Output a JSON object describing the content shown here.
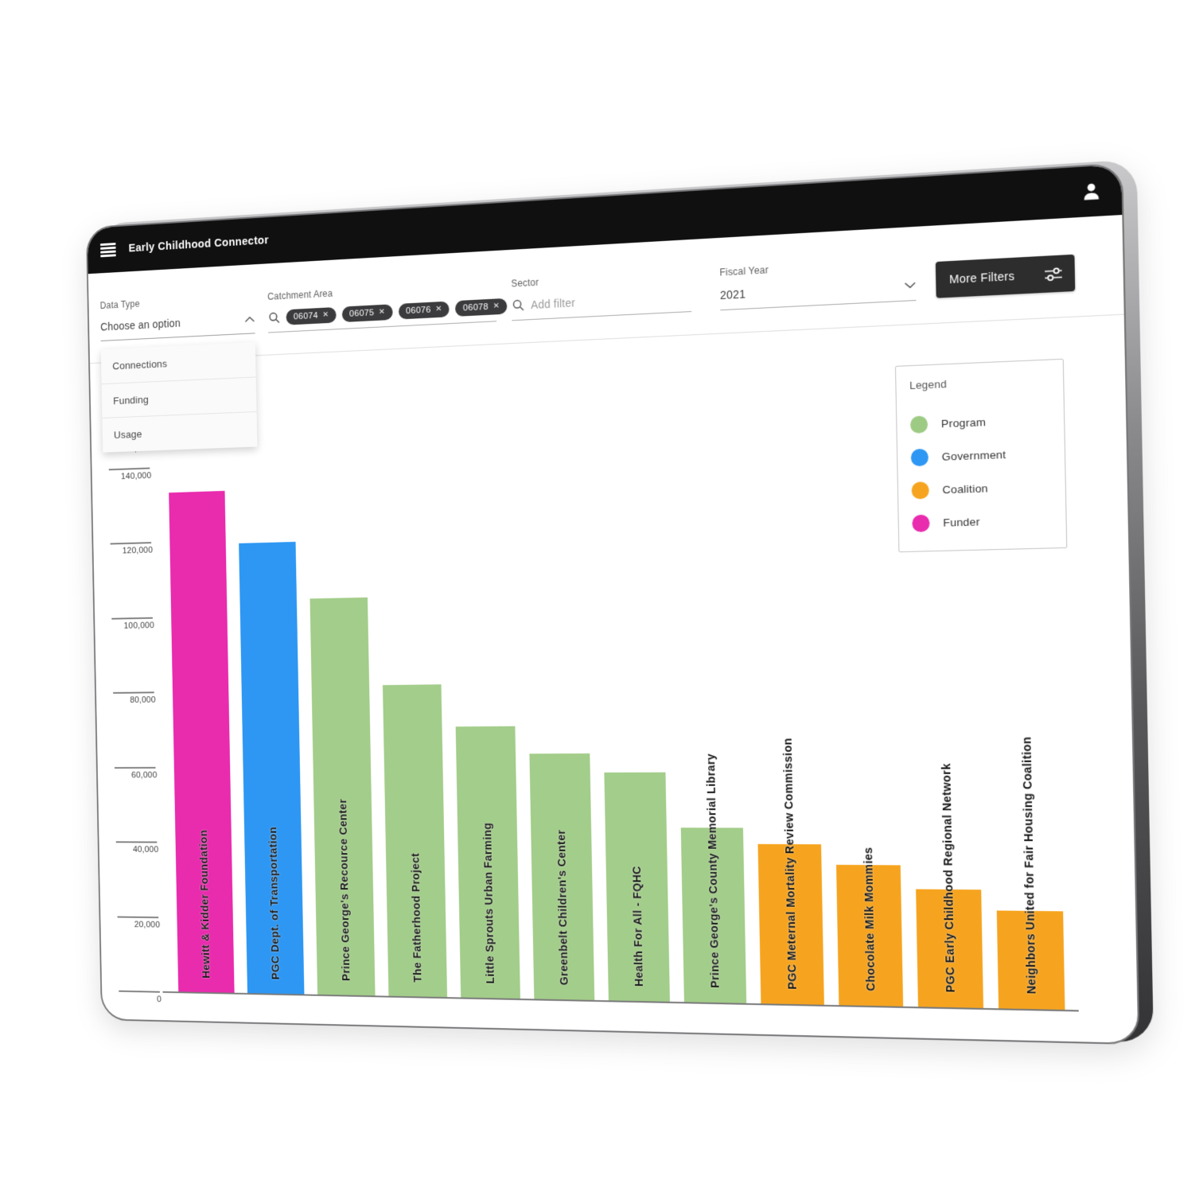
{
  "app": {
    "title": "Early Childhood Connector"
  },
  "filters": {
    "data_type": {
      "label": "Data Type",
      "value": "Choose an option",
      "state": "open",
      "options": [
        "Connections",
        "Funding",
        "Usage"
      ]
    },
    "catchment_area": {
      "label": "Catchment Area",
      "chips": [
        "06074",
        "06075",
        "06076",
        "06078"
      ],
      "chip_remove_symbol": "✕"
    },
    "sector": {
      "label": "Sector",
      "placeholder": "Add filter"
    },
    "fiscal_year": {
      "label": "Fiscal Year",
      "value": "2021"
    },
    "more_filters": {
      "label": "More Filters"
    }
  },
  "legend": {
    "title": "Legend",
    "position": "top-right",
    "items": [
      {
        "label": "Program",
        "color": "#9ecb84"
      },
      {
        "label": "Government",
        "color": "#2d97f3"
      },
      {
        "label": "Coalition",
        "color": "#f6a41f"
      },
      {
        "label": "Funder",
        "color": "#e92bae"
      }
    ]
  },
  "chart_data": {
    "type": "bar",
    "title": "",
    "xlabel": "",
    "ylabel": "",
    "grid": false,
    "ylim": [
      0,
      160000
    ],
    "ytick_step": 20000,
    "ytick_labels": [
      "0",
      "20,000",
      "40,000",
      "60,000",
      "80,000",
      "100,000",
      "120,000",
      "140,000",
      "160,000"
    ],
    "categories": [
      "Hewitt & Kidder Foundation",
      "PGC Dept. of Transportation",
      "Prince George's Recource Center",
      "The Fatherhood Project",
      "Little Sprouts Urban Farming",
      "Greenbelt Children's Center",
      "Health For All - FQHC",
      "Prince George's County Memorial Library",
      "PGC Meternal Mortality Review Commission",
      "Chocolate Milk Mommies",
      "PGC Early Childhood Regional Network",
      "Neighbors United for Fair Housing Coalition"
    ],
    "values": [
      133000,
      119000,
      104000,
      81000,
      70000,
      63000,
      58000,
      44000,
      40000,
      35000,
      29000,
      24000
    ],
    "sectors": [
      "funder",
      "government",
      "program",
      "program",
      "program",
      "program",
      "program",
      "program",
      "coalition",
      "coalition",
      "coalition",
      "coalition"
    ],
    "sector_colors": {
      "program": "#a3cd8a",
      "government": "#2d97f3",
      "coalition": "#f6a41f",
      "funder": "#e92bae"
    }
  }
}
